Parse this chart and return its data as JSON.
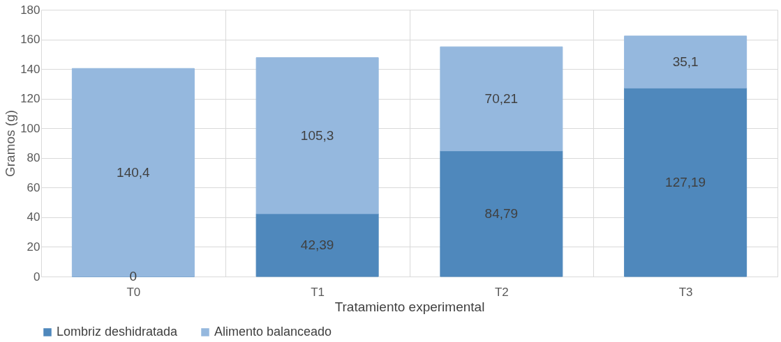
{
  "chart_data": {
    "type": "bar",
    "stacked": true,
    "xlabel": "Tratamiento experimental",
    "ylabel": "Gramos (g)",
    "categories": [
      "T0",
      "T1",
      "T2",
      "T3"
    ],
    "series": [
      {
        "name": "Lombriz deshidratada",
        "color": "#4f88bc",
        "values": [
          0,
          42.39,
          84.79,
          127.19
        ],
        "value_labels": [
          "0",
          "42,39",
          "84,79",
          "127,19"
        ]
      },
      {
        "name": "Alimento balanceado",
        "color": "#95b8de",
        "values": [
          140.4,
          105.3,
          70.21,
          35.1
        ],
        "value_labels": [
          "140,4",
          "105,3",
          "70,21",
          "35,1"
        ]
      }
    ],
    "ylim": [
      0,
      180
    ],
    "yticks": [
      0,
      20,
      40,
      60,
      80,
      100,
      120,
      140,
      160,
      180
    ],
    "grid": true,
    "legend": "bottom"
  }
}
